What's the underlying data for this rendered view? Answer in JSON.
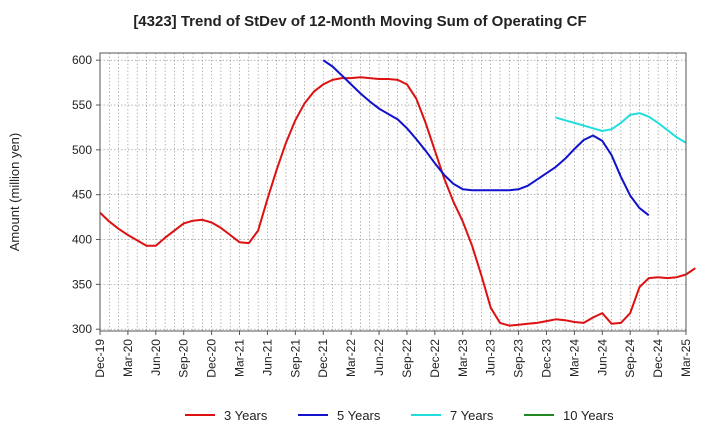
{
  "chart_data": {
    "type": "line",
    "title": "[4323]  Trend of StDev of 12-Month Moving Sum of Operating CF",
    "xlabel": "",
    "ylabel": "Amount (million yen)",
    "ylim": [
      298,
      608
    ],
    "yticks": [
      300,
      350,
      400,
      450,
      500,
      550,
      600
    ],
    "x_ticks": [
      "Dec-19",
      "Mar-20",
      "Jun-20",
      "Sep-20",
      "Dec-20",
      "Mar-21",
      "Jun-21",
      "Sep-21",
      "Dec-21",
      "Mar-22",
      "Jun-22",
      "Sep-22",
      "Dec-22",
      "Mar-23",
      "Jun-23",
      "Sep-23",
      "Dec-23",
      "Mar-24",
      "Jun-24",
      "Sep-24",
      "Dec-24",
      "Mar-25"
    ],
    "grid": true,
    "legend_position": "bottom",
    "series": [
      {
        "name": "3 Years",
        "color": "#dd1111",
        "start_index": 0,
        "values": [
          430,
          420,
          412,
          405,
          399,
          393,
          393,
          402,
          410,
          418,
          421,
          422,
          419,
          413,
          405,
          397,
          396,
          410,
          445,
          478,
          508,
          533,
          552,
          565,
          573,
          578,
          580,
          580,
          581,
          580,
          579,
          579,
          578,
          573,
          557,
          530,
          499,
          468,
          442,
          420,
          393,
          360,
          324,
          307,
          304,
          305,
          306,
          307,
          309,
          311,
          310,
          308,
          307,
          313,
          318,
          306,
          307,
          318,
          347,
          357,
          358,
          357,
          358,
          361,
          368
        ]
      },
      {
        "name": "5 Years",
        "color": "#1111cc",
        "start_index": 24,
        "values": [
          600,
          593,
          583,
          573,
          563,
          554,
          546,
          540,
          534,
          524,
          512,
          499,
          485,
          472,
          462,
          456,
          455,
          455,
          455,
          455,
          455,
          456,
          460,
          467,
          474,
          481,
          490,
          501,
          511,
          516,
          510,
          494,
          470,
          449,
          435,
          427
        ]
      },
      {
        "name": "7 Years",
        "color": "#22dddd",
        "start_index": 49,
        "values": [
          536,
          533,
          530,
          527,
          524,
          521,
          523,
          530,
          539,
          541,
          537,
          530,
          522,
          514,
          508
        ]
      },
      {
        "name": "10 Years",
        "color": "#228822",
        "start_index": 0,
        "values": []
      }
    ]
  }
}
